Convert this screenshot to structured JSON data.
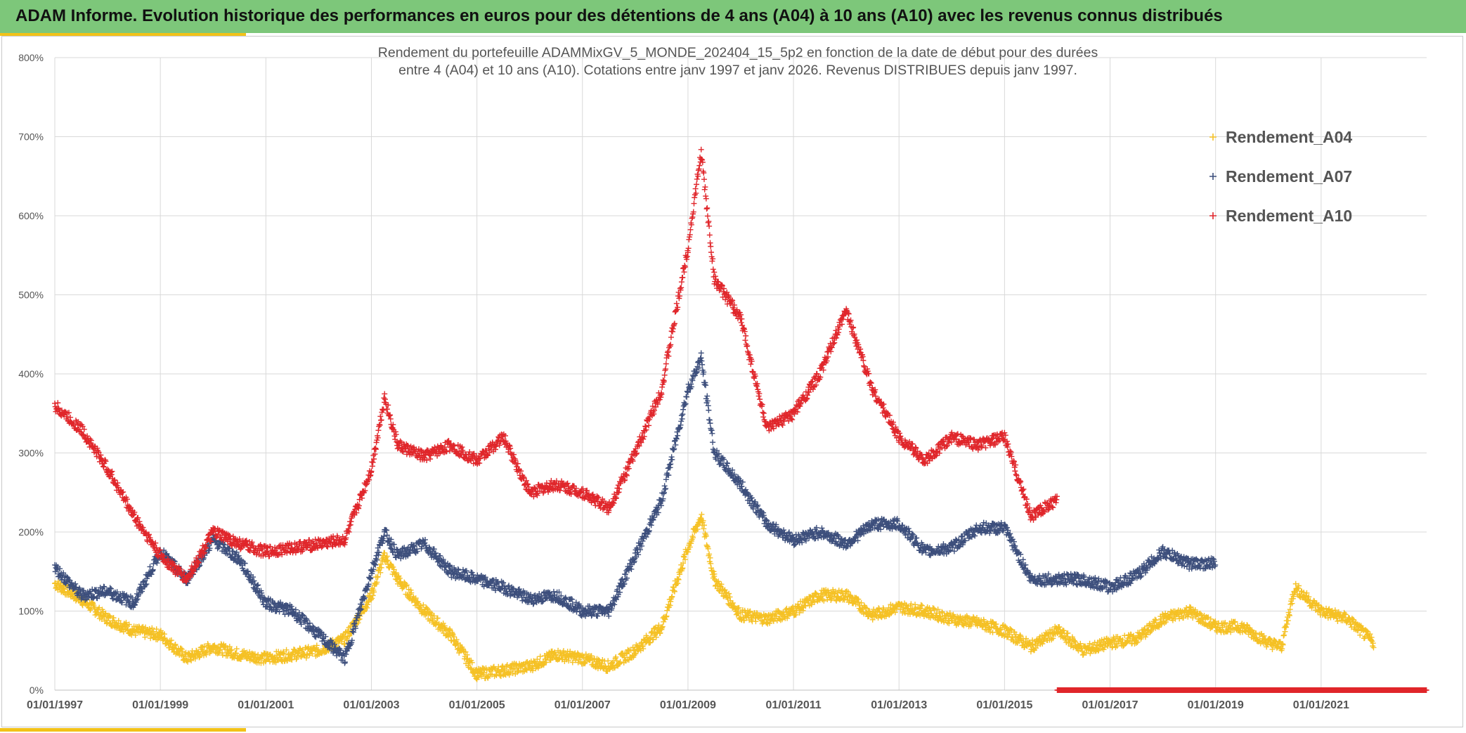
{
  "header": {
    "title": "ADAM Informe. Evolution historique des performances en euros pour des détentions de 4 ans (A04) à 10 ans (A10) avec les revenus connus distribués"
  },
  "colors": {
    "banner": "#7dc77a",
    "accent": "#f2c218",
    "A04": "#f5c125",
    "A07": "#3d4f7c",
    "A10": "#e0262b"
  },
  "chart_data": {
    "type": "scatter",
    "title_lines": [
      "Rendement du portefeuille ADAMMixGV_5_MONDE_202404_15_5p2  en fonction de la date de début pour des durées",
      "entre 4 (A04) et 10 ans (A10). Cotations entre janv 1997 et janv 2026. Revenus DISTRIBUES depuis janv 1997."
    ],
    "xlim": [
      "1997-01-01",
      "2023-01-01"
    ],
    "ylim": [
      0,
      800
    ],
    "x_ticks": [
      "01/01/1997",
      "01/01/1999",
      "01/01/2001",
      "01/01/2003",
      "01/01/2005",
      "01/01/2007",
      "01/01/2009",
      "01/01/2011",
      "01/01/2013",
      "01/01/2015",
      "01/01/2017",
      "01/01/2019",
      "01/01/2021"
    ],
    "y_ticks": [
      "0%",
      "100%",
      "200%",
      "300%",
      "400%",
      "500%",
      "600%",
      "700%",
      "800%"
    ],
    "grid": true,
    "legend_position": "top-right",
    "marker": "+",
    "series": [
      {
        "name": "Rendement_A04",
        "x": [
          "1997-01",
          "1997-07",
          "1998-01",
          "1998-07",
          "1999-01",
          "1999-07",
          "2000-01",
          "2000-07",
          "2001-01",
          "2001-07",
          "2002-01",
          "2002-07",
          "2003-01",
          "2003-04",
          "2003-07",
          "2004-01",
          "2004-07",
          "2005-01",
          "2005-07",
          "2006-01",
          "2006-07",
          "2007-01",
          "2007-07",
          "2008-01",
          "2008-07",
          "2009-01",
          "2009-04",
          "2009-07",
          "2010-01",
          "2010-07",
          "2011-01",
          "2011-07",
          "2012-01",
          "2012-07",
          "2013-01",
          "2013-07",
          "2014-01",
          "2014-07",
          "2015-01",
          "2015-07",
          "2016-01",
          "2016-07",
          "2017-01",
          "2017-07",
          "2018-01",
          "2018-07",
          "2019-01",
          "2019-07",
          "2020-01",
          "2020-04",
          "2020-07",
          "2021-01",
          "2021-07",
          "2022-01"
        ],
        "y": [
          135,
          115,
          90,
          75,
          70,
          40,
          55,
          45,
          40,
          45,
          50,
          65,
          120,
          170,
          140,
          100,
          70,
          20,
          25,
          30,
          45,
          40,
          30,
          50,
          80,
          180,
          220,
          140,
          95,
          90,
          100,
          120,
          120,
          95,
          105,
          100,
          90,
          85,
          75,
          55,
          75,
          50,
          60,
          65,
          90,
          100,
          80,
          80,
          60,
          55,
          130,
          100,
          90,
          60
        ]
      },
      {
        "name": "Rendement_A07",
        "x": [
          "1997-01",
          "1997-07",
          "1998-01",
          "1998-07",
          "1999-01",
          "1999-07",
          "2000-01",
          "2000-07",
          "2001-01",
          "2001-07",
          "2002-01",
          "2002-07",
          "2003-01",
          "2003-04",
          "2003-07",
          "2004-01",
          "2004-07",
          "2005-01",
          "2005-07",
          "2006-01",
          "2006-07",
          "2007-01",
          "2007-07",
          "2008-01",
          "2008-07",
          "2009-01",
          "2009-04",
          "2009-07",
          "2010-01",
          "2010-07",
          "2011-01",
          "2011-07",
          "2012-01",
          "2012-07",
          "2013-01",
          "2013-07",
          "2014-01",
          "2014-07",
          "2015-01",
          "2015-07",
          "2016-01",
          "2016-07",
          "2017-01",
          "2017-07",
          "2018-01",
          "2018-07",
          "2019-01"
        ],
        "y": [
          155,
          120,
          125,
          110,
          175,
          140,
          190,
          165,
          110,
          100,
          70,
          40,
          150,
          200,
          170,
          185,
          150,
          140,
          130,
          115,
          120,
          100,
          100,
          170,
          240,
          380,
          420,
          300,
          260,
          210,
          190,
          200,
          185,
          210,
          210,
          175,
          180,
          205,
          205,
          140,
          140,
          140,
          130,
          145,
          175,
          160,
          160
        ]
      },
      {
        "name": "Rendement_A10",
        "x": [
          "1997-01",
          "1997-07",
          "1998-01",
          "1998-07",
          "1999-01",
          "1999-07",
          "2000-01",
          "2000-07",
          "2001-01",
          "2001-07",
          "2002-01",
          "2002-07",
          "2003-01",
          "2003-04",
          "2003-07",
          "2004-01",
          "2004-07",
          "2005-01",
          "2005-07",
          "2006-01",
          "2006-07",
          "2007-01",
          "2007-07",
          "2008-01",
          "2008-07",
          "2009-01",
          "2009-04",
          "2009-07",
          "2010-01",
          "2010-07",
          "2011-01",
          "2011-07",
          "2012-01",
          "2012-07",
          "2013-01",
          "2013-07",
          "2014-01",
          "2014-07",
          "2015-01",
          "2015-07",
          "2016-01"
        ],
        "y": [
          360,
          330,
          280,
          220,
          170,
          140,
          200,
          185,
          175,
          180,
          185,
          190,
          280,
          370,
          310,
          295,
          310,
          290,
          320,
          250,
          260,
          250,
          230,
          300,
          380,
          560,
          680,
          520,
          470,
          330,
          350,
          400,
          480,
          380,
          320,
          290,
          320,
          310,
          320,
          220,
          240
        ]
      },
      {
        "name": "",
        "note_series": "baseline",
        "x": [
          "2016-01",
          "2023-01"
        ],
        "y": [
          0,
          0
        ]
      }
    ]
  }
}
